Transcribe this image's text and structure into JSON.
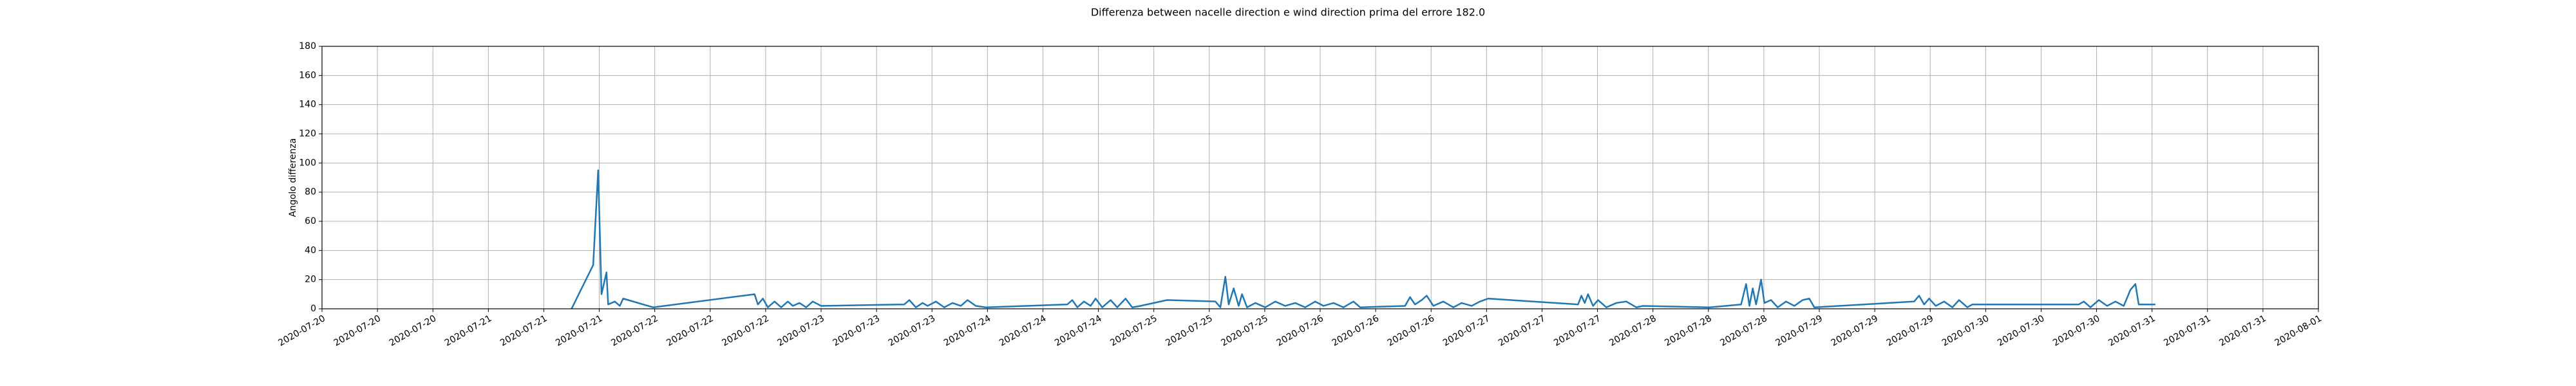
{
  "chart_data": {
    "type": "line",
    "title": "Differenza between nacelle direction e wind direction prima del errore 182.0",
    "y_label": "Angolo differenza",
    "color": "#1f77b4",
    "grid": true,
    "xlim": [
      0,
      12
    ],
    "ylim": [
      0,
      180
    ],
    "yticks": [
      0,
      20,
      40,
      60,
      80,
      100,
      120,
      140,
      160,
      180
    ],
    "xticks": [
      {
        "value": 0,
        "label": "2020-07-20"
      },
      {
        "value": 0.333333,
        "label": "2020-07-20"
      },
      {
        "value": 0.666667,
        "label": "2020-07-20"
      },
      {
        "value": 1,
        "label": "2020-07-21"
      },
      {
        "value": 1.333333,
        "label": "2020-07-21"
      },
      {
        "value": 1.666667,
        "label": "2020-07-21"
      },
      {
        "value": 2,
        "label": "2020-07-22"
      },
      {
        "value": 2.333333,
        "label": "2020-07-22"
      },
      {
        "value": 2.666667,
        "label": "2020-07-22"
      },
      {
        "value": 3,
        "label": "2020-07-23"
      },
      {
        "value": 3.333333,
        "label": "2020-07-23"
      },
      {
        "value": 3.666667,
        "label": "2020-07-23"
      },
      {
        "value": 4,
        "label": "2020-07-24"
      },
      {
        "value": 4.333333,
        "label": "2020-07-24"
      },
      {
        "value": 4.666667,
        "label": "2020-07-24"
      },
      {
        "value": 5,
        "label": "2020-07-25"
      },
      {
        "value": 5.333333,
        "label": "2020-07-25"
      },
      {
        "value": 5.666667,
        "label": "2020-07-25"
      },
      {
        "value": 6,
        "label": "2020-07-26"
      },
      {
        "value": 6.333333,
        "label": "2020-07-26"
      },
      {
        "value": 6.666667,
        "label": "2020-07-26"
      },
      {
        "value": 7,
        "label": "2020-07-27"
      },
      {
        "value": 7.333333,
        "label": "2020-07-27"
      },
      {
        "value": 7.666667,
        "label": "2020-07-27"
      },
      {
        "value": 8,
        "label": "2020-07-28"
      },
      {
        "value": 8.333333,
        "label": "2020-07-28"
      },
      {
        "value": 8.666667,
        "label": "2020-07-28"
      },
      {
        "value": 9,
        "label": "2020-07-29"
      },
      {
        "value": 9.333333,
        "label": "2020-07-29"
      },
      {
        "value": 9.666667,
        "label": "2020-07-29"
      },
      {
        "value": 10,
        "label": "2020-07-30"
      },
      {
        "value": 10.333333,
        "label": "2020-07-30"
      },
      {
        "value": 10.666667,
        "label": "2020-07-30"
      },
      {
        "value": 11,
        "label": "2020-07-31"
      },
      {
        "value": 11.333333,
        "label": "2020-07-31"
      },
      {
        "value": 11.666667,
        "label": "2020-07-31"
      },
      {
        "value": 12,
        "label": "2020-08-01"
      }
    ],
    "x": [
      1.5,
      1.63,
      1.66,
      1.68,
      1.71,
      1.72,
      1.76,
      1.79,
      1.81,
      1.99,
      2.6,
      2.62,
      2.65,
      2.68,
      2.72,
      2.76,
      2.8,
      2.83,
      2.87,
      2.91,
      2.95,
      3.0,
      3.5,
      3.53,
      3.57,
      3.61,
      3.64,
      3.69,
      3.74,
      3.79,
      3.84,
      3.88,
      3.93,
      3.99,
      4.48,
      4.51,
      4.54,
      4.58,
      4.62,
      4.65,
      4.69,
      4.74,
      4.78,
      4.83,
      4.87,
      4.92,
      5.08,
      5.37,
      5.4,
      5.43,
      5.45,
      5.48,
      5.51,
      5.53,
      5.56,
      5.61,
      5.67,
      5.73,
      5.79,
      5.85,
      5.91,
      5.97,
      6.02,
      6.08,
      6.14,
      6.2,
      6.24,
      6.51,
      6.54,
      6.57,
      6.61,
      6.64,
      6.68,
      6.74,
      6.8,
      6.85,
      6.91,
      6.96,
      7.01,
      7.55,
      7.57,
      7.59,
      7.61,
      7.64,
      7.67,
      7.72,
      7.78,
      7.84,
      7.9,
      7.94,
      8.34,
      8.53,
      8.56,
      8.58,
      8.6,
      8.62,
      8.65,
      8.67,
      8.71,
      8.75,
      8.8,
      8.85,
      8.9,
      8.94,
      8.97,
      9.57,
      9.6,
      9.63,
      9.66,
      9.7,
      9.75,
      9.8,
      9.84,
      9.89,
      9.92,
      10.56,
      10.59,
      10.63,
      10.68,
      10.73,
      10.78,
      10.83,
      10.87,
      10.9,
      10.92,
      11.02
    ],
    "values": [
      0,
      30,
      95,
      10,
      25,
      3,
      5,
      2,
      7,
      1,
      10,
      3,
      7,
      1,
      5,
      1,
      5,
      2,
      4,
      1,
      5,
      2,
      3,
      6,
      1,
      4,
      2,
      5,
      1,
      4,
      2,
      6,
      2,
      1,
      3,
      6,
      1,
      5,
      2,
      7,
      1,
      6,
      1,
      7,
      1,
      2,
      6,
      5,
      1,
      22,
      3,
      14,
      2,
      10,
      1,
      4,
      1,
      5,
      2,
      4,
      1,
      5,
      2,
      4,
      1,
      5,
      1,
      2,
      8,
      3,
      6,
      9,
      2,
      5,
      1,
      4,
      2,
      5,
      7,
      3,
      9,
      4,
      10,
      2,
      6,
      1,
      4,
      5,
      1,
      2,
      1,
      3,
      17,
      2,
      14,
      3,
      20,
      4,
      6,
      1,
      5,
      2,
      6,
      7,
      1,
      5,
      9,
      3,
      7,
      2,
      5,
      1,
      6,
      1,
      3,
      3,
      5,
      1,
      6,
      2,
      5,
      2,
      13,
      17,
      3,
      3
    ]
  }
}
